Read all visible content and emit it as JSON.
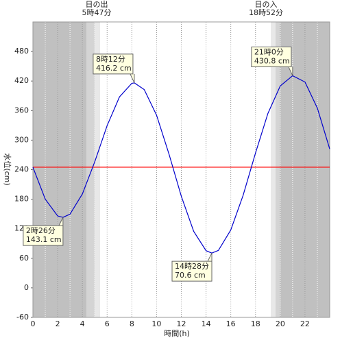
{
  "chart_data": {
    "type": "line",
    "x_label": "時間(h)",
    "y_label": "水位(cm)",
    "x": [
      0,
      1,
      2,
      2.433,
      3,
      4,
      5,
      6,
      7,
      8,
      8.2,
      9,
      10,
      11,
      12,
      13,
      14,
      14.467,
      15,
      16,
      17,
      18,
      19,
      20,
      21,
      22,
      23,
      24
    ],
    "series": [
      {
        "color": "#0000cc",
        "values": [
          245,
          180,
          146,
          143.1,
          149.6,
          190.6,
          255.9,
          329.4,
          387.8,
          415.4,
          416.2,
          402.7,
          350.6,
          272,
          186,
          114.8,
          75.4,
          70.6,
          76,
          117.5,
          188,
          273.8,
          354,
          410,
          430.8,
          418,
          365,
          282
        ]
      }
    ],
    "reference_line": {
      "value": 245,
      "color": "#ff0000"
    },
    "xlim": [
      0,
      24
    ],
    "xticks": [
      0,
      2,
      4,
      6,
      8,
      10,
      12,
      14,
      16,
      18,
      20,
      22
    ],
    "ylim": [
      -60,
      540
    ],
    "yticks": [
      -60,
      0,
      60,
      120,
      180,
      240,
      300,
      360,
      420,
      480
    ],
    "sun": [
      {
        "label": "日の出",
        "time": "5時47分"
      },
      {
        "label": "日の入",
        "time": "18時52分"
      }
    ],
    "annotations": [
      {
        "time": "2時26分",
        "level": "143.1 cm",
        "x": 2.433,
        "y": 143.1
      },
      {
        "time": "8時12分",
        "level": "416.2 cm",
        "x": 8.2,
        "y": 416.2
      },
      {
        "time": "14時28分",
        "level": "70.6 cm",
        "x": 14.467,
        "y": 70.6
      },
      {
        "time": "21時0分",
        "level": "430.8 cm",
        "x": 21,
        "y": 430.8
      }
    ]
  }
}
